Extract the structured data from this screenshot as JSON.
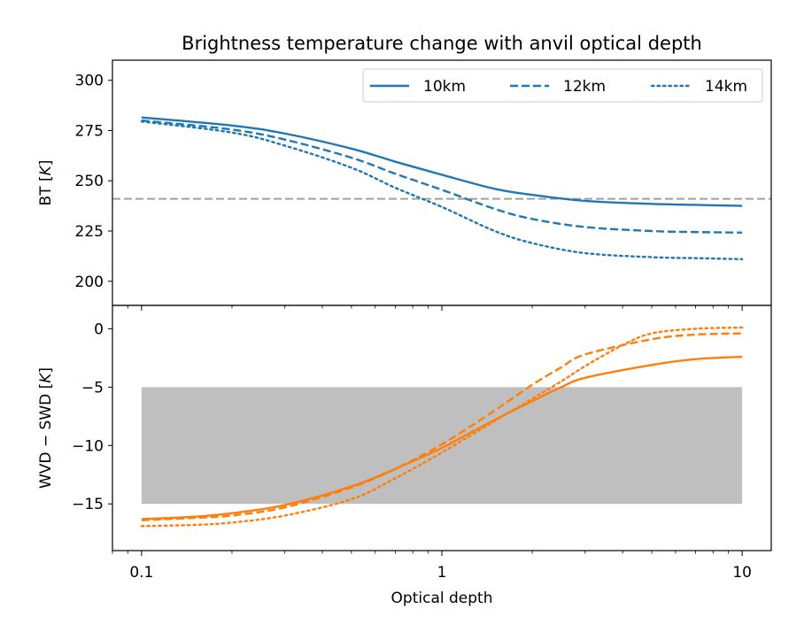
{
  "chart_data": {
    "type": "line",
    "title": "Brightness temperature change with anvil optical depth",
    "xlabel": "Optical depth",
    "xscale": "log",
    "xlim": [
      0.08,
      12.5
    ],
    "xticks": [
      0.1,
      1,
      10
    ],
    "xtick_labels": [
      "0.1",
      "1",
      "10"
    ],
    "legend": {
      "placement": "top-right",
      "entries": [
        {
          "label": "10km",
          "linestyle": "solid"
        },
        {
          "label": "12km",
          "linestyle": "dashed"
        },
        {
          "label": "14km",
          "linestyle": "dotted"
        }
      ]
    },
    "colors": {
      "top": "#1f77b4",
      "bottom": "#ff7f0e",
      "reference": "#a0a0a0",
      "band": "#bfbfbf"
    },
    "panels": [
      {
        "id": "bt",
        "ylabel": "BT [K]",
        "ylabel_prefix": "BT [",
        "ylabel_italic": "K",
        "ylabel_suffix": "]",
        "ylim": [
          188,
          310
        ],
        "yticks": [
          200,
          225,
          250,
          275,
          300
        ],
        "reference_line": 241,
        "series": [
          {
            "name": "10km",
            "linestyle": "solid",
            "x": [
              0.1,
              0.2,
              0.3,
              0.5,
              0.7,
              1,
              1.5,
              2,
              3,
              5,
              7,
              10
            ],
            "y": [
              281.5,
              277.5,
              273.5,
              266,
              259.5,
              253,
              246,
              243,
              240,
              238.5,
              238,
              237.5
            ]
          },
          {
            "name": "12km",
            "linestyle": "dashed",
            "x": [
              0.1,
              0.2,
              0.3,
              0.5,
              0.7,
              1,
              1.5,
              2,
              3,
              5,
              7,
              10
            ],
            "y": [
              280,
              275.5,
              270.5,
              261.5,
              253.5,
              245.5,
              236,
              231,
              227,
              225,
              224.5,
              224.2
            ]
          },
          {
            "name": "14km",
            "linestyle": "dotted",
            "x": [
              0.1,
              0.2,
              0.3,
              0.5,
              0.7,
              1,
              1.5,
              2,
              3,
              5,
              7,
              10
            ],
            "y": [
              279.5,
              274,
              267.5,
              256.5,
              246.5,
              237,
              225,
              219,
              214,
              212,
              211.5,
              211
            ]
          }
        ]
      },
      {
        "id": "wvd",
        "ylabel": "WVD − SWD [K]",
        "ylabel_prefix": "WVD − SWD [",
        "ylabel_italic": "K",
        "ylabel_suffix": "]",
        "ylim": [
          -19,
          2
        ],
        "yticks": [
          0,
          -5,
          -10,
          -15
        ],
        "ytick_labels": [
          "0",
          "−5",
          "−10",
          "−15"
        ],
        "band": [
          -15,
          -5
        ],
        "series": [
          {
            "name": "10km",
            "linestyle": "solid",
            "x": [
              0.1,
              0.15,
              0.2,
              0.3,
              0.5,
              0.7,
              1,
              1.5,
              2,
              2.5,
              3,
              5,
              7,
              10
            ],
            "y": [
              -16.3,
              -16.1,
              -15.8,
              -15.1,
              -13.5,
              -12,
              -10.2,
              -7.8,
              -6.2,
              -5.0,
              -4.2,
              -3.1,
              -2.6,
              -2.4
            ]
          },
          {
            "name": "12km",
            "linestyle": "dashed",
            "x": [
              0.1,
              0.15,
              0.2,
              0.3,
              0.5,
              0.7,
              1,
              1.5,
              2,
              2.5,
              3,
              5,
              7,
              10
            ],
            "y": [
              -16.4,
              -16.2,
              -16.0,
              -15.3,
              -13.6,
              -12,
              -9.9,
              -7.0,
              -4.8,
              -3.3,
              -2.2,
              -0.9,
              -0.5,
              -0.4
            ]
          },
          {
            "name": "14km",
            "linestyle": "dotted",
            "x": [
              0.1,
              0.15,
              0.2,
              0.3,
              0.5,
              0.7,
              1,
              1.5,
              2,
              2.5,
              3,
              4,
              5,
              7,
              10
            ],
            "y": [
              -16.9,
              -16.8,
              -16.6,
              -16.0,
              -14.6,
              -12.8,
              -10.6,
              -7.9,
              -6.0,
              -4.5,
              -3.2,
              -1.4,
              -0.4,
              0.0,
              0.1
            ]
          }
        ]
      }
    ]
  }
}
